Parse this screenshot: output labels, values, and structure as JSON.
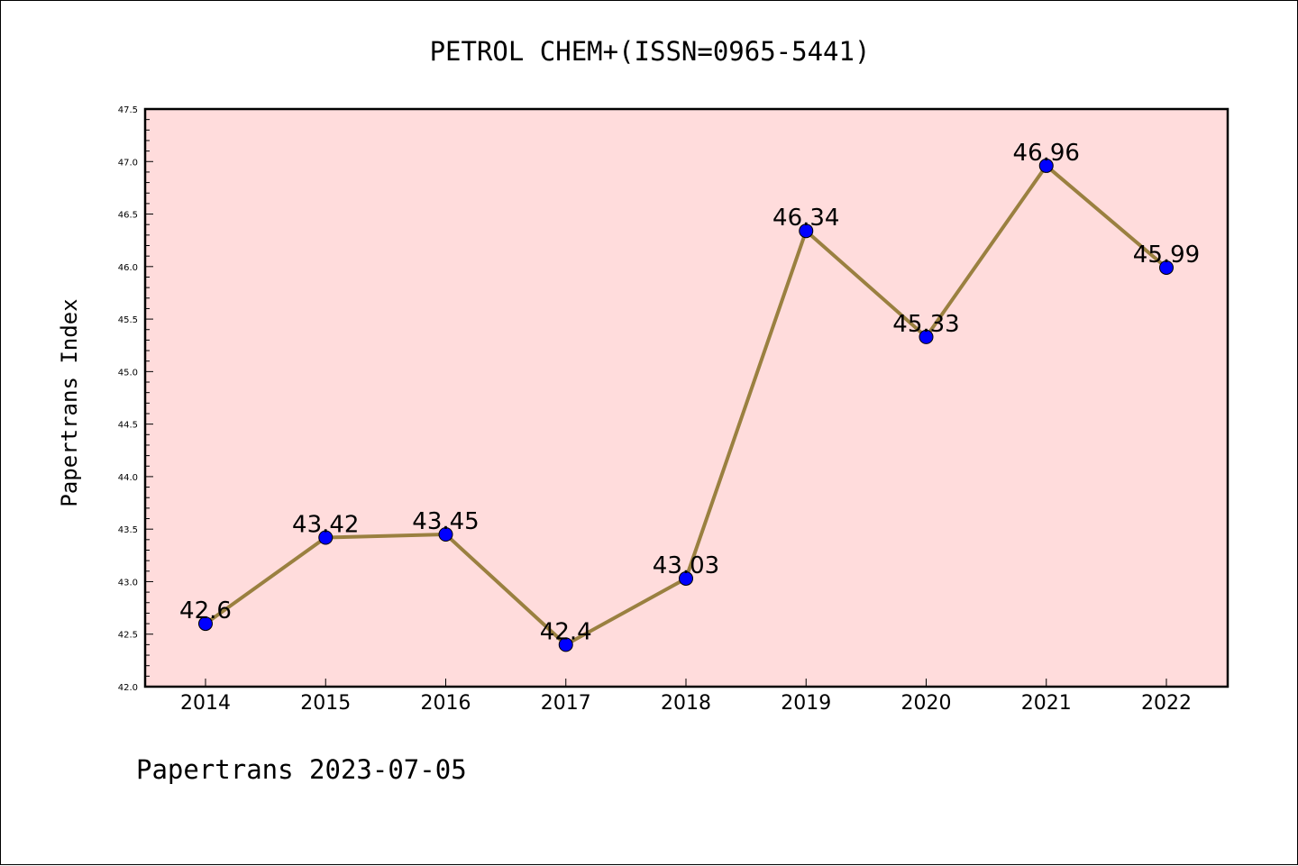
{
  "chart_data": {
    "type": "line",
    "title": "PETROL CHEM+(ISSN=0965-5441)",
    "ylabel": "Papertrans Index",
    "xlabel": "",
    "categories": [
      "2014",
      "2015",
      "2016",
      "2017",
      "2018",
      "2019",
      "2020",
      "2021",
      "2022"
    ],
    "values": [
      42.6,
      43.42,
      43.45,
      42.4,
      43.03,
      46.34,
      45.33,
      46.96,
      45.99
    ],
    "data_labels": [
      "42.6",
      "43.42",
      "43.45",
      "42.4",
      "43.03",
      "46.34",
      "45.33",
      "46.96",
      "45.99"
    ],
    "ylim": [
      42.0,
      47.5
    ],
    "yticks": [
      "42.0",
      "42.5",
      "43.0",
      "43.5",
      "44.0",
      "44.5",
      "45.0",
      "45.5",
      "46.0",
      "46.5",
      "47.0",
      "47.5"
    ],
    "grid": false,
    "legend": "none",
    "colors": {
      "plot_background": "#ffdcdc",
      "line": "#9a8040",
      "marker": "#0000ff"
    }
  },
  "footer": "Papertrans 2023-07-05"
}
